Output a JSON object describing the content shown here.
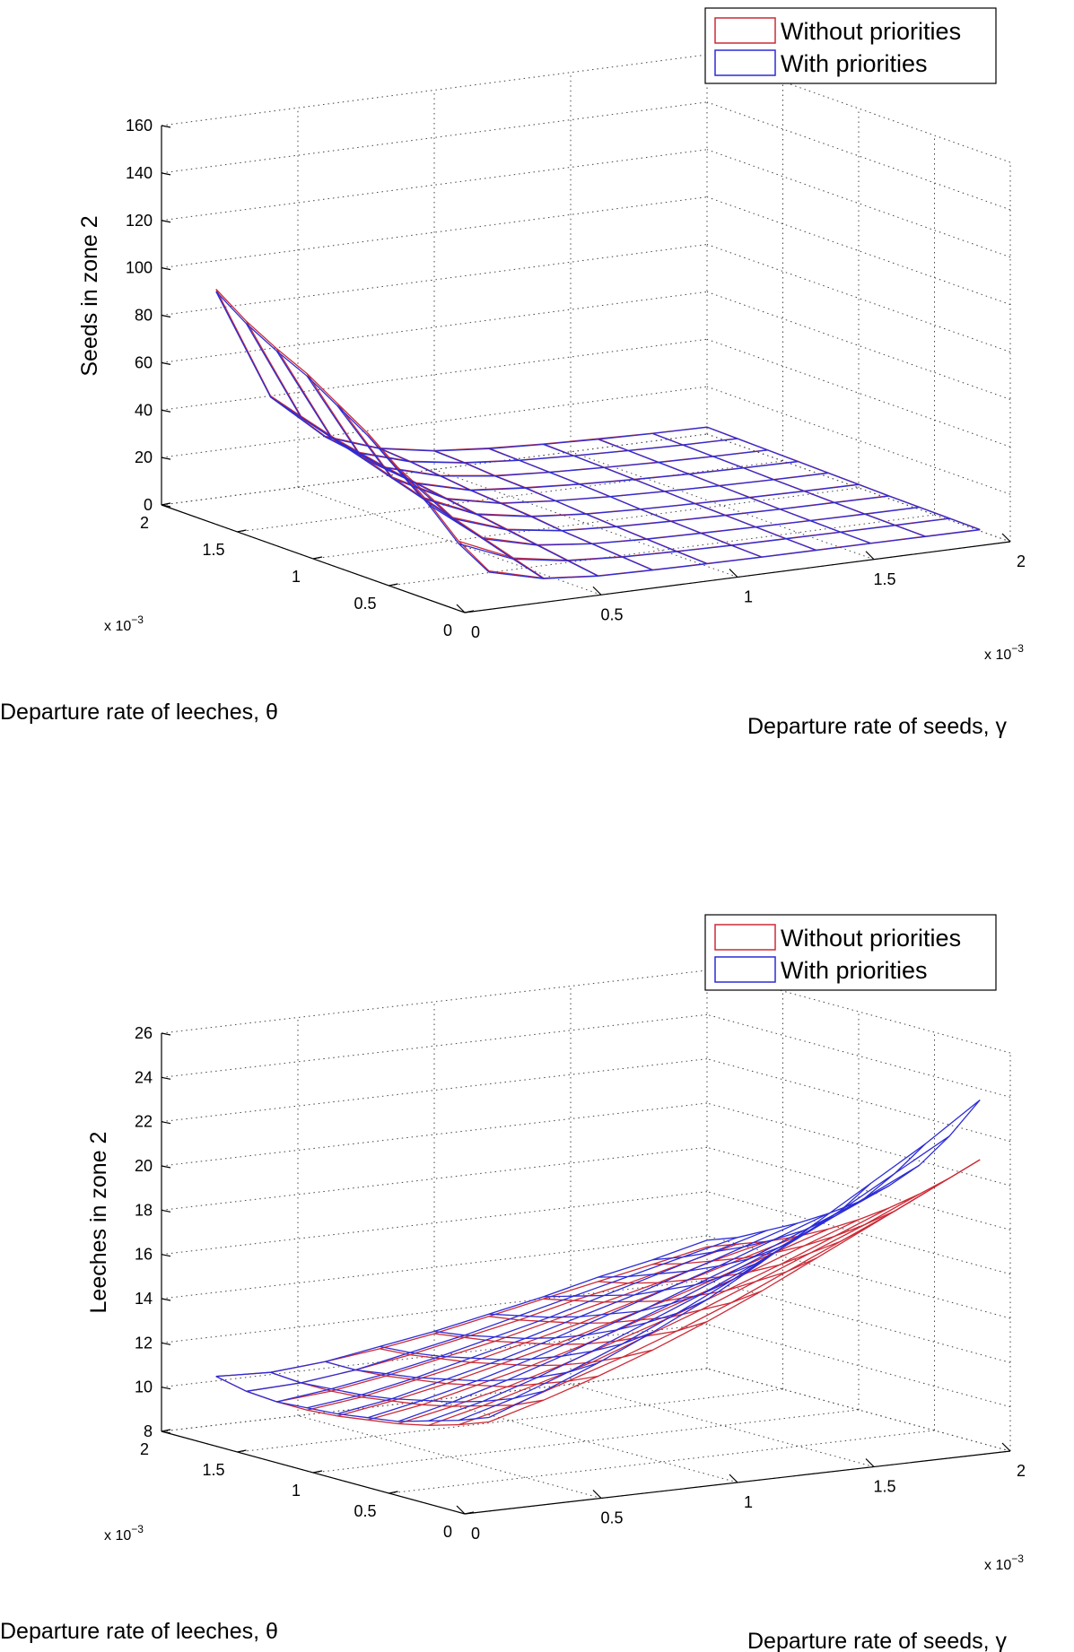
{
  "chart_data": [
    {
      "type": "surface",
      "zlabel": "Seeds in zone 2",
      "xlabel": "Departure rate of seeds, γ",
      "ylabel": "Departure rate of leeches, θ",
      "x_scale_label": "x 10",
      "y_scale_label": "x 10",
      "scale_exponent": "−3",
      "xlim": [
        0,
        2
      ],
      "ylim": [
        0,
        2
      ],
      "zlim": [
        0,
        160
      ],
      "xticks": [
        "0",
        "0.5",
        "1",
        "1.5",
        "2"
      ],
      "yticks": [
        "0",
        "0.5",
        "1",
        "1.5",
        "2"
      ],
      "zticks": [
        "0",
        "20",
        "40",
        "60",
        "80",
        "100",
        "120",
        "140",
        "160"
      ],
      "legend": [
        {
          "label": "Without priorities",
          "color": "#cc2a36"
        },
        {
          "label": "With priorities",
          "color": "#2c2cd6"
        }
      ],
      "grid": true,
      "x": [
        0.2,
        0.4,
        0.6,
        0.8,
        1.0,
        1.2,
        1.4,
        1.6,
        1.8,
        2.0
      ],
      "y": [
        0.2,
        0.4,
        0.6,
        0.8,
        1.0,
        1.2,
        1.4,
        1.6,
        1.8,
        2.0
      ],
      "series": [
        {
          "name": "Without priorities",
          "z": [
            [
              10,
              4,
              2,
              1.5,
              1.2,
              1.0,
              0.9,
              0.8,
              0.7,
              0.6
            ],
            [
              18,
              8,
              4,
              2.5,
              1.8,
              1.4,
              1.2,
              1.0,
              0.9,
              0.8
            ],
            [
              30,
              12,
              6,
              3.5,
              2.5,
              2.0,
              1.6,
              1.3,
              1.1,
              1.0
            ],
            [
              40,
              16,
              8,
              4.5,
              3.2,
              2.5,
              2.0,
              1.6,
              1.4,
              1.2
            ],
            [
              50,
              20,
              10,
              6,
              4,
              3,
              2.4,
              2.0,
              1.7,
              1.5
            ],
            [
              58,
              24,
              12,
              7,
              5,
              3.8,
              3,
              2.4,
              2.0,
              1.8
            ],
            [
              66,
              28,
              14,
              8,
              6,
              4.5,
              3.5,
              2.8,
              2.4,
              2.1
            ],
            [
              72,
              32,
              16,
              9.5,
              6.5,
              5,
              4,
              3.2,
              2.7,
              2.4
            ],
            [
              79,
              36,
              18,
              11,
              7.5,
              5.5,
              4.4,
              3.6,
              3.0,
              2.7
            ],
            [
              88,
              40,
              20,
              12,
              8,
              6,
              4.8,
              4.0,
              3.3,
              3.0
            ]
          ]
        },
        {
          "name": "With priorities",
          "z": [
            [
              9.5,
              3.8,
              1.9,
              1.4,
              1.1,
              0.9,
              0.8,
              0.7,
              0.6,
              0.5
            ],
            [
              17,
              7.5,
              3.8,
              2.4,
              1.7,
              1.3,
              1.1,
              0.9,
              0.8,
              0.7
            ],
            [
              29,
              11.5,
              5.8,
              3.4,
              2.4,
              1.9,
              1.5,
              1.2,
              1.0,
              0.9
            ],
            [
              39,
              15.5,
              7.7,
              4.4,
              3.1,
              2.4,
              1.9,
              1.5,
              1.3,
              1.1
            ],
            [
              49,
              19.5,
              9.7,
              5.8,
              3.9,
              2.9,
              2.3,
              1.9,
              1.6,
              1.4
            ],
            [
              57,
              23.5,
              11.7,
              6.8,
              4.9,
              3.7,
              2.9,
              2.3,
              1.9,
              1.7
            ],
            [
              65,
              27.5,
              13.7,
              7.8,
              5.8,
              4.4,
              3.4,
              2.7,
              2.3,
              2.0
            ],
            [
              71,
              31.5,
              15.7,
              9.3,
              6.3,
              4.9,
              3.9,
              3.1,
              2.6,
              2.3
            ],
            [
              78,
              35.5,
              17.7,
              10.8,
              7.3,
              5.4,
              4.3,
              3.5,
              2.9,
              2.6
            ],
            [
              87,
              39.5,
              19.7,
              11.8,
              7.8,
              5.8,
              4.6,
              3.8,
              3.2,
              2.9
            ]
          ]
        }
      ]
    },
    {
      "type": "surface",
      "zlabel": "Leeches in zone 2",
      "xlabel": "Departure rate of seeds, γ",
      "ylabel": "Departure rate of leeches, θ",
      "x_scale_label": "x 10",
      "y_scale_label": "x 10",
      "scale_exponent": "−3",
      "xlim": [
        0,
        2
      ],
      "ylim": [
        0,
        2
      ],
      "zlim": [
        8,
        26
      ],
      "xticks": [
        "0",
        "0.5",
        "1",
        "1.5",
        "2"
      ],
      "yticks": [
        "0",
        "0.5",
        "1",
        "1.5",
        "2"
      ],
      "zticks": [
        "8",
        "10",
        "12",
        "14",
        "16",
        "18",
        "20",
        "22",
        "24",
        "26"
      ],
      "legend": [
        {
          "label": "Without priorities",
          "color": "#cc2a36"
        },
        {
          "label": "With priorities",
          "color": "#2c2cd6"
        }
      ],
      "grid": true,
      "x": [
        0.2,
        0.4,
        0.6,
        0.8,
        1.0,
        1.2,
        1.4,
        1.6,
        1.8,
        2.0
      ],
      "y": [
        0.2,
        0.4,
        0.6,
        0.8,
        1.0,
        1.2,
        1.4,
        1.6,
        1.8,
        2.0
      ],
      "series": [
        {
          "name": "Without priorities",
          "z": [
            [
              11.5,
              12.2,
              13.0,
              13.9,
              14.9,
              16.0,
              17.2,
              18.4,
              19.6,
              20.8
            ],
            [
              11.0,
              11.6,
              12.4,
              13.2,
              14.1,
              15.1,
              16.2,
              17.3,
              18.4,
              19.6
            ],
            [
              10.6,
              11.2,
              11.9,
              12.6,
              13.5,
              14.4,
              15.4,
              16.4,
              17.4,
              18.5
            ],
            [
              10.3,
              10.8,
              11.4,
              12.1,
              12.9,
              13.7,
              14.6,
              15.5,
              16.5,
              17.5
            ],
            [
              10.1,
              10.5,
              11.1,
              11.7,
              12.4,
              13.2,
              14.0,
              14.8,
              15.7,
              16.6
            ],
            [
              9.9,
              10.3,
              10.8,
              11.4,
              12.0,
              12.7,
              13.4,
              14.2,
              15.0,
              15.8
            ],
            [
              9.8,
              10.1,
              10.6,
              11.1,
              11.7,
              12.3,
              13.0,
              13.7,
              14.4,
              15.1
            ],
            [
              9.8,
              10.0,
              10.4,
              10.9,
              11.4,
              12.0,
              12.6,
              13.2,
              13.9,
              14.5
            ],
            [
              9.9,
              10.0,
              10.3,
              10.7,
              11.2,
              11.7,
              12.3,
              12.8,
              13.4,
              14.0
            ],
            [
              10.2,
              10.1,
              10.3,
              10.6,
              11.0,
              11.5,
              12.0,
              12.5,
              13.0,
              13.5
            ]
          ]
        },
        {
          "name": "With priorities",
          "z": [
            [
              11.7,
              12.6,
              13.6,
              14.7,
              15.9,
              17.3,
              18.8,
              20.3,
              21.8,
              23.5
            ],
            [
              11.2,
              11.9,
              12.8,
              13.8,
              14.9,
              16.1,
              17.4,
              18.7,
              20.1,
              21.5
            ],
            [
              10.8,
              11.4,
              12.2,
              13.1,
              14.1,
              15.1,
              16.2,
              17.4,
              18.6,
              19.8
            ],
            [
              10.4,
              11.0,
              11.7,
              12.5,
              13.4,
              14.3,
              15.3,
              16.3,
              17.4,
              18.5
            ],
            [
              10.2,
              10.7,
              11.3,
              12.0,
              12.8,
              13.6,
              14.5,
              15.4,
              16.4,
              17.4
            ],
            [
              10.0,
              10.4,
              11.0,
              11.6,
              12.3,
              13.1,
              13.9,
              14.7,
              15.6,
              16.5
            ],
            [
              9.9,
              10.2,
              10.7,
              11.3,
              11.9,
              12.6,
              13.3,
              14.1,
              14.9,
              15.7
            ],
            [
              9.8,
              10.1,
              10.5,
              11.0,
              11.6,
              12.2,
              12.9,
              13.6,
              14.3,
              15.0
            ],
            [
              9.9,
              10.0,
              10.3,
              10.8,
              11.3,
              11.9,
              12.5,
              13.1,
              13.7,
              14.3
            ],
            [
              10.2,
              10.1,
              10.3,
              10.7,
              11.1,
              11.6,
              12.1,
              12.7,
              13.2,
              13.8
            ]
          ]
        }
      ]
    }
  ]
}
